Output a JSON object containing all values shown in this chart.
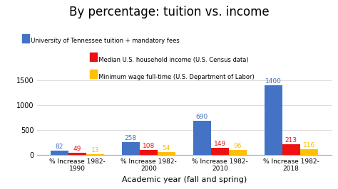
{
  "title": "By percentage: tuition vs. income",
  "xlabel": "Academic year (fall and spring)",
  "categories": [
    "% Increase 1982-\n1990",
    "% Increase 1982-\n2000",
    "% Increase 1982-\n2010",
    "% Increase 1982-\n2018"
  ],
  "series": {
    "tuition": [
      82,
      258,
      690,
      1400
    ],
    "income": [
      49,
      108,
      149,
      213
    ],
    "minwage": [
      13,
      54,
      96,
      116
    ]
  },
  "colors": {
    "tuition": "#4472C4",
    "income": "#EE1111",
    "minwage": "#FFC000"
  },
  "legend": [
    "University of Tennessee tuition + mandatory fees",
    "Median U.S. household income (U.S. Census data)",
    "Minimum wage full-time (U.S. Department of Labor)"
  ],
  "ylim": [
    0,
    1600
  ],
  "yticks": [
    0,
    500,
    1000,
    1500
  ],
  "background_color": "#ffffff",
  "title_fontsize": 12,
  "xlabel_fontsize": 8,
  "bar_label_fontsize": 6.5,
  "legend_fontsize": 6,
  "xtick_fontsize": 6.5,
  "ytick_fontsize": 7
}
